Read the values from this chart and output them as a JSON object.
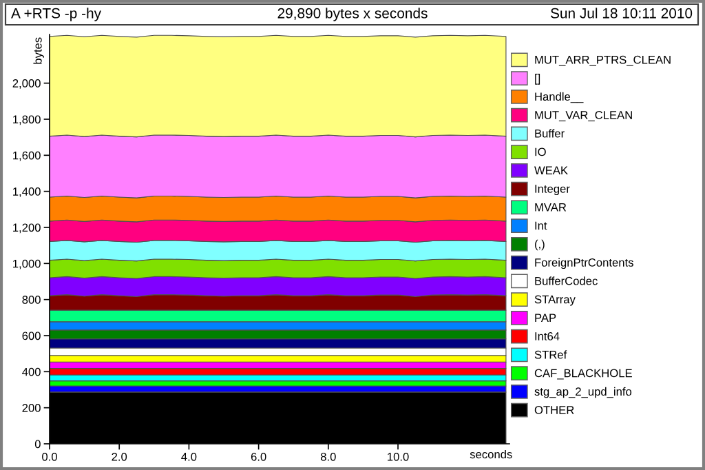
{
  "chart_data": {
    "type": "area",
    "stacked": true,
    "title": "A +RTS -p -hy",
    "subtitle": "29,890 bytes x seconds",
    "annotations": [
      "Sun Jul 18 10:11 2010"
    ],
    "xlabel": "seconds",
    "ylabel": "bytes",
    "legend": "right",
    "grid": false,
    "xlim": [
      0,
      13.2
    ],
    "ylim": [
      0,
      2270
    ],
    "xticks": [
      {
        "value": 0,
        "label": "0.0"
      },
      {
        "value": 2,
        "label": "2.0"
      },
      {
        "value": 4,
        "label": "4.0"
      },
      {
        "value": 6,
        "label": "6.0"
      },
      {
        "value": 8,
        "label": "8.0"
      },
      {
        "value": 10,
        "label": "10.0"
      }
    ],
    "yticks": [
      0,
      200,
      400,
      600,
      800,
      {
        "value": 1000,
        "label": "1,000"
      },
      {
        "value": 1200,
        "label": "1,200"
      },
      {
        "value": 1400,
        "label": "1,400"
      },
      {
        "value": 1600,
        "label": "1,600"
      },
      {
        "value": 1800,
        "label": "1,800"
      },
      {
        "value": 2000,
        "label": "2,000"
      }
    ],
    "x": [
      0,
      0.5,
      1,
      1.5,
      2,
      2.5,
      3,
      3.5,
      4,
      4.5,
      5,
      5.5,
      6,
      6.5,
      7,
      7.5,
      8,
      8.5,
      9,
      9.5,
      10,
      10.5,
      11,
      11.5,
      12,
      12.5,
      13.1
    ],
    "series": [
      {
        "name": "OTHER",
        "color": "#000000",
        "values": [
          287,
          287,
          287,
          287,
          287,
          287,
          287,
          287,
          287,
          287,
          287,
          287,
          287,
          287,
          287,
          287,
          287,
          287,
          287,
          287,
          287,
          287,
          287,
          287,
          287,
          287,
          287
        ]
      },
      {
        "name": "stg_ap_2_upd_info",
        "color": "#0000ff",
        "values": [
          34,
          34,
          34,
          34,
          34,
          34,
          34,
          34,
          34,
          34,
          34,
          34,
          34,
          34,
          34,
          34,
          34,
          34,
          34,
          34,
          34,
          34,
          34,
          34,
          34,
          34,
          34
        ]
      },
      {
        "name": "CAF_BLACKHOLE",
        "color": "#00ff00",
        "values": [
          28,
          28,
          28,
          28,
          28,
          28,
          28,
          28,
          28,
          28,
          28,
          28,
          28,
          28,
          28,
          28,
          28,
          28,
          28,
          28,
          28,
          28,
          28,
          28,
          28,
          28,
          28
        ]
      },
      {
        "name": "STRef",
        "color": "#00ffff",
        "values": [
          33,
          33,
          33,
          33,
          33,
          33,
          33,
          33,
          33,
          33,
          33,
          33,
          33,
          33,
          33,
          33,
          33,
          33,
          33,
          33,
          33,
          33,
          33,
          33,
          33,
          33,
          33
        ]
      },
      {
        "name": "Int64",
        "color": "#ff0000",
        "values": [
          36,
          36,
          36,
          36,
          36,
          36,
          36,
          36,
          36,
          36,
          36,
          36,
          36,
          36,
          36,
          36,
          36,
          36,
          36,
          36,
          36,
          36,
          36,
          36,
          36,
          36,
          36
        ]
      },
      {
        "name": "PAP",
        "color": "#ff00ff",
        "values": [
          36,
          36,
          36,
          36,
          36,
          36,
          36,
          36,
          36,
          36,
          36,
          36,
          36,
          36,
          36,
          36,
          36,
          36,
          36,
          36,
          36,
          36,
          36,
          36,
          36,
          36,
          36
        ]
      },
      {
        "name": "STArray",
        "color": "#ffff00",
        "values": [
          36,
          36,
          36,
          36,
          36,
          36,
          36,
          36,
          36,
          36,
          36,
          36,
          36,
          36,
          36,
          36,
          36,
          36,
          36,
          36,
          36,
          36,
          36,
          36,
          36,
          36,
          36
        ]
      },
      {
        "name": "BufferCodec",
        "color": "#ffffff",
        "values": [
          41,
          41,
          41,
          41,
          41,
          41,
          41,
          41,
          41,
          41,
          41,
          41,
          41,
          41,
          41,
          41,
          41,
          41,
          41,
          41,
          41,
          41,
          41,
          41,
          41,
          41,
          41
        ]
      },
      {
        "name": "ForeignPtrContents",
        "color": "#000080",
        "values": [
          51,
          51,
          51,
          51,
          51,
          51,
          51,
          51,
          51,
          51,
          51,
          51,
          51,
          51,
          51,
          51,
          51,
          51,
          51,
          51,
          51,
          51,
          51,
          51,
          51,
          51,
          51
        ]
      },
      {
        "name": "(,)",
        "color": "#008000",
        "values": [
          49,
          49,
          49,
          49,
          49,
          49,
          49,
          49,
          49,
          49,
          49,
          49,
          49,
          49,
          49,
          49,
          49,
          49,
          49,
          49,
          49,
          49,
          49,
          49,
          49,
          49,
          49
        ]
      },
      {
        "name": "Int",
        "color": "#0080ff",
        "values": [
          46,
          46,
          46,
          46,
          46,
          46,
          46,
          46,
          46,
          46,
          46,
          46,
          46,
          46,
          46,
          46,
          46,
          46,
          46,
          46,
          46,
          46,
          46,
          46,
          46,
          46,
          46
        ]
      },
      {
        "name": "MVAR",
        "color": "#00ff80",
        "values": [
          64,
          64,
          64,
          64,
          64,
          64,
          64,
          64,
          64,
          64,
          64,
          64,
          64,
          64,
          64,
          64,
          64,
          64,
          64,
          64,
          64,
          64,
          64,
          64,
          64,
          64,
          64
        ]
      },
      {
        "name": "Integer",
        "color": "#800000",
        "values": [
          80,
          86,
          78,
          86,
          80,
          76,
          86,
          86,
          84,
          80,
          78,
          80,
          80,
          86,
          80,
          80,
          86,
          80,
          80,
          84,
          84,
          76,
          84,
          86,
          84,
          86,
          80
        ]
      },
      {
        "name": "WEAK",
        "color": "#8000ff",
        "values": [
          100,
          100,
          100,
          100,
          100,
          100,
          100,
          100,
          100,
          100,
          100,
          100,
          100,
          100,
          100,
          100,
          100,
          100,
          100,
          100,
          100,
          100,
          100,
          100,
          100,
          100,
          100
        ]
      },
      {
        "name": "IO",
        "color": "#80e000",
        "values": [
          97,
          97,
          97,
          97,
          97,
          97,
          97,
          97,
          97,
          97,
          97,
          97,
          97,
          97,
          97,
          97,
          97,
          97,
          97,
          97,
          97,
          97,
          97,
          97,
          97,
          97,
          97
        ]
      },
      {
        "name": "Buffer",
        "color": "#80ffff",
        "values": [
          104,
          104,
          104,
          104,
          104,
          104,
          104,
          104,
          104,
          104,
          104,
          104,
          104,
          104,
          104,
          104,
          104,
          104,
          104,
          104,
          104,
          104,
          104,
          104,
          104,
          104,
          104
        ]
      },
      {
        "name": "MUT_VAR_CLEAN",
        "color": "#ff0080",
        "values": [
          113,
          113,
          113,
          113,
          113,
          113,
          113,
          113,
          113,
          113,
          113,
          113,
          113,
          113,
          113,
          113,
          113,
          113,
          113,
          113,
          113,
          113,
          113,
          113,
          113,
          113,
          113
        ]
      },
      {
        "name": "Handle__",
        "color": "#ff8000",
        "values": [
          133,
          133,
          133,
          133,
          133,
          133,
          133,
          133,
          133,
          133,
          133,
          133,
          133,
          133,
          133,
          133,
          133,
          133,
          133,
          133,
          133,
          133,
          133,
          133,
          133,
          133,
          133
        ]
      },
      {
        "name": "[]",
        "color": "#ff80ff",
        "values": [
          338,
          338,
          338,
          338,
          338,
          338,
          338,
          338,
          338,
          338,
          338,
          338,
          338,
          338,
          338,
          338,
          338,
          338,
          338,
          338,
          338,
          338,
          338,
          338,
          338,
          338,
          338
        ]
      },
      {
        "name": "MUT_ARR_PTRS_CLEAN",
        "color": "#ffff80",
        "values": [
          553,
          553,
          553,
          553,
          553,
          553,
          553,
          553,
          553,
          553,
          553,
          553,
          553,
          553,
          553,
          553,
          553,
          553,
          553,
          553,
          553,
          553,
          553,
          553,
          553,
          553,
          553
        ]
      }
    ]
  }
}
